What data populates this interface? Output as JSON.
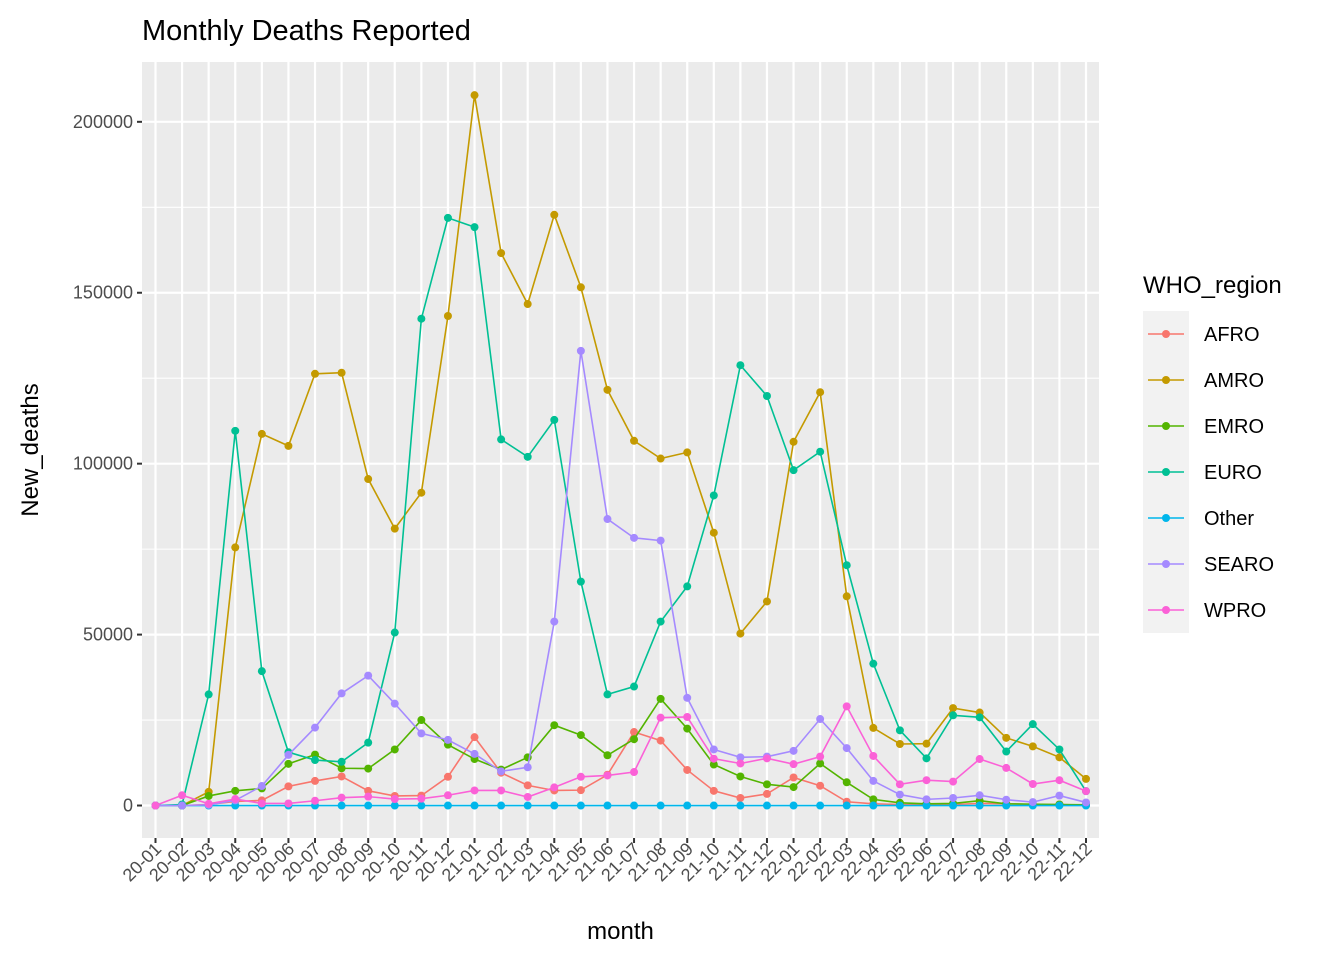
{
  "chart_data": {
    "type": "line",
    "title": "Monthly Deaths Reported",
    "xlabel": "month",
    "ylabel": "New_deaths",
    "ylim": [
      -9500,
      217500
    ],
    "y_ticks": [
      0,
      50000,
      100000,
      150000,
      200000
    ],
    "y_tick_labels": [
      "0",
      "50000",
      "100000",
      "150000",
      "200000"
    ],
    "grid": true,
    "legend": {
      "title": "WHO_region",
      "placement": "right"
    },
    "categories": [
      "20-01",
      "20-02",
      "20-03",
      "20-04",
      "20-05",
      "20-06",
      "20-07",
      "20-08",
      "20-09",
      "20-10",
      "20-11",
      "20-12",
      "21-01",
      "21-02",
      "21-03",
      "21-04",
      "21-05",
      "21-06",
      "21-07",
      "21-08",
      "21-09",
      "21-10",
      "21-11",
      "21-12",
      "22-01",
      "22-02",
      "22-03",
      "22-04",
      "22-05",
      "22-06",
      "22-07",
      "22-08",
      "22-09",
      "22-10",
      "22-11",
      "22-12"
    ],
    "series": [
      {
        "name": "AFRO",
        "color": "#F8766D",
        "values": [
          0,
          0,
          300,
          1200,
          1500,
          5600,
          7200,
          8500,
          4300,
          2800,
          2900,
          8400,
          20000,
          9600,
          5900,
          4400,
          4500,
          9000,
          21500,
          19000,
          10400,
          4300,
          2200,
          3400,
          8200,
          5800,
          1100,
          500,
          300,
          200,
          300,
          600,
          500,
          300,
          300,
          100
        ]
      },
      {
        "name": "AMRO",
        "color": "#C49A00",
        "values": [
          0,
          0,
          4000,
          75500,
          108700,
          105200,
          126300,
          126600,
          95500,
          81000,
          91500,
          143200,
          207800,
          161600,
          146700,
          172800,
          151600,
          121600,
          106700,
          101500,
          103300,
          79800,
          50300,
          59700,
          106400,
          120900,
          61200,
          22700,
          18000,
          18100,
          28500,
          27200,
          19800,
          17300,
          14100,
          7800
        ]
      },
      {
        "name": "EMRO",
        "color": "#53B400",
        "values": [
          0,
          0,
          2800,
          4300,
          5000,
          12200,
          14900,
          10900,
          10800,
          16400,
          25000,
          17800,
          13600,
          10500,
          14100,
          23500,
          20600,
          14700,
          19400,
          31200,
          22500,
          12000,
          8500,
          6200,
          5400,
          12300,
          6800,
          1800,
          800,
          500,
          600,
          1400,
          500,
          400,
          300,
          200
        ]
      },
      {
        "name": "EURO",
        "color": "#00C094",
        "values": [
          0,
          300,
          32500,
          109600,
          39300,
          15600,
          13300,
          12800,
          18400,
          50600,
          142400,
          171900,
          169200,
          107100,
          102000,
          112800,
          65500,
          32500,
          34800,
          53800,
          64100,
          90700,
          128800,
          119800,
          98100,
          103500,
          70300,
          41500,
          22000,
          13800,
          26400,
          25800,
          15800,
          23800,
          16400,
          4200
        ]
      },
      {
        "name": "Other",
        "color": "#00B6EB",
        "values": [
          0,
          0,
          0,
          0,
          0,
          0,
          0,
          0,
          0,
          0,
          0,
          0,
          0,
          0,
          0,
          0,
          0,
          0,
          0,
          0,
          0,
          0,
          0,
          0,
          0,
          0,
          0,
          0,
          0,
          0,
          0,
          0,
          0,
          0,
          0,
          0
        ]
      },
      {
        "name": "SEARO",
        "color": "#A58AFF",
        "values": [
          0,
          0,
          200,
          1500,
          5700,
          14800,
          22800,
          32800,
          38000,
          29800,
          21100,
          19200,
          15100,
          10000,
          11200,
          53800,
          133000,
          83800,
          78300,
          77500,
          31500,
          16400,
          14100,
          14300,
          16000,
          25300,
          16800,
          7200,
          3200,
          1800,
          2200,
          3000,
          1700,
          1000,
          2900,
          900
        ]
      },
      {
        "name": "WPRO",
        "color": "#FB61D7",
        "values": [
          0,
          3000,
          500,
          1900,
          600,
          600,
          1400,
          2300,
          2600,
          1900,
          2000,
          3000,
          4400,
          4400,
          2500,
          5300,
          8400,
          8800,
          9800,
          25700,
          25900,
          13700,
          12300,
          13800,
          12100,
          14300,
          29000,
          14500,
          6200,
          7400,
          7000,
          13600,
          11000,
          6300,
          7400,
          4200
        ]
      }
    ]
  }
}
